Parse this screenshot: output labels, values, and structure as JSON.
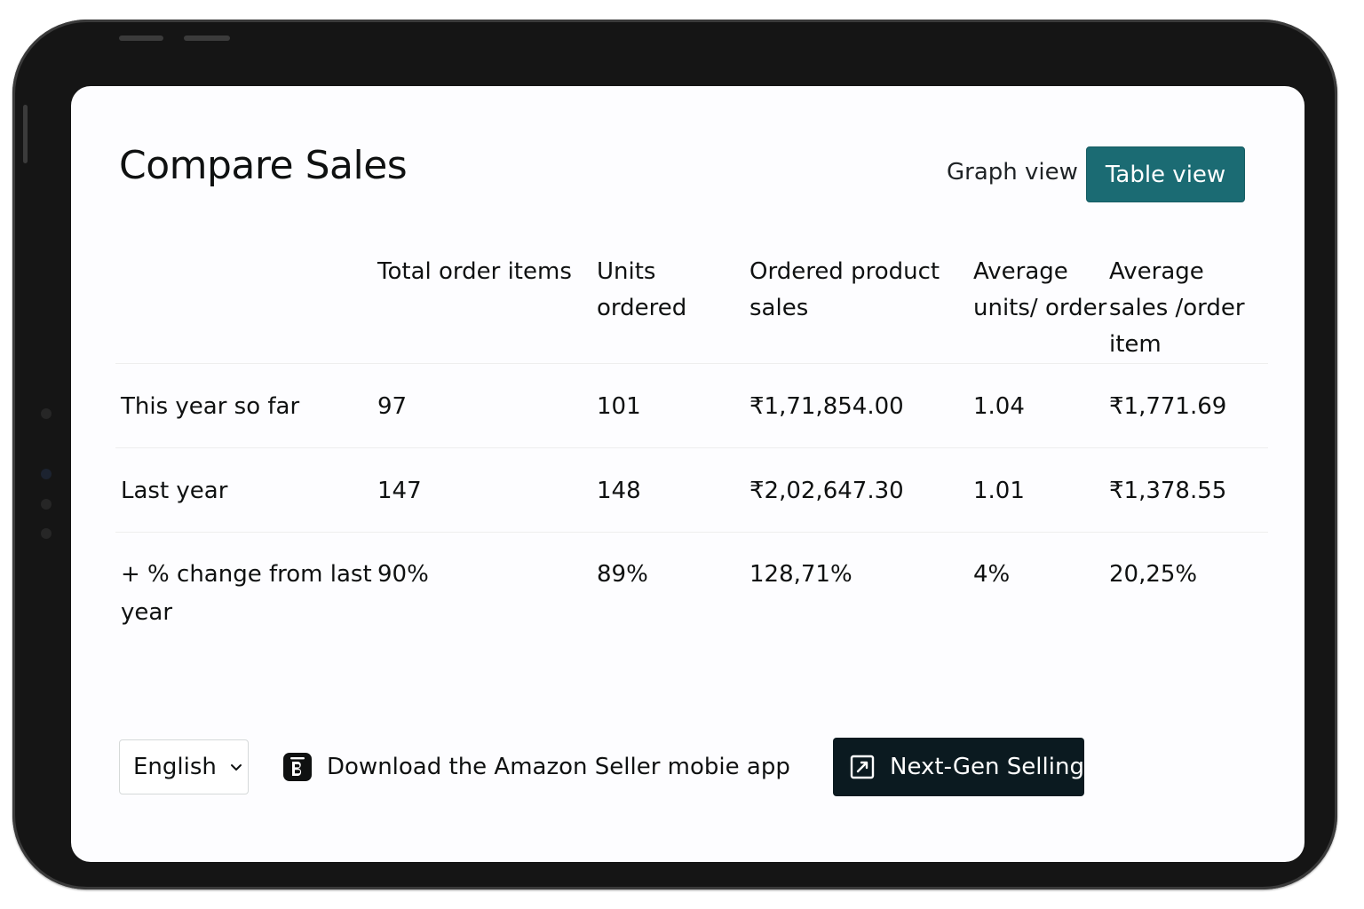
{
  "header": {
    "title": "Compare Sales",
    "graph_view_label": "Graph view",
    "table_view_label": "Table view"
  },
  "table": {
    "columns": [
      "",
      "Total order items",
      "Units ordered",
      "Ordered product sales",
      "Average units/ order",
      "Average sales /order item"
    ],
    "rows": [
      {
        "label": "This year so far",
        "values": [
          "97",
          "101",
          "₹1,71,854.00",
          "1.04",
          "₹1,771.69"
        ]
      },
      {
        "label": "Last year",
        "values": [
          "147",
          "148",
          "₹2,02,647.30",
          "1.01",
          "₹1,378.55"
        ]
      },
      {
        "label": "+ % change from last year",
        "values": [
          "90%",
          "89%",
          "128,71%",
          "4%",
          "20,25%"
        ]
      }
    ]
  },
  "footer": {
    "language": "English",
    "app_link_label": "Download the Amazon Seller mobie app",
    "nextgen_label": "Next-Gen Selling"
  },
  "colors": {
    "accent": "#1b6b73",
    "positive_change": "#137a13",
    "dark_button": "#0b1a20",
    "device_frame": "#151515"
  },
  "icons": {
    "language_dropdown": "chevron-down-icon",
    "app_link": "seller-app-icon",
    "nextgen": "external-link-icon"
  }
}
